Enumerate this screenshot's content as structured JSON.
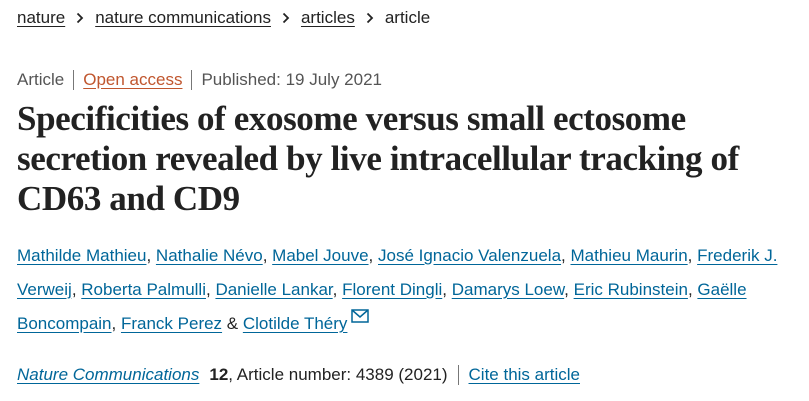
{
  "breadcrumb": [
    "nature",
    "nature communications",
    "articles",
    "article"
  ],
  "meta": {
    "type": "Article",
    "access": "Open access",
    "published": "Published: 19 July 2021"
  },
  "title": "Specificities of exosome versus small ectosome secretion revealed by live intracellular tracking of CD63 and CD9",
  "authors": [
    {
      "name": "Mathilde Mathieu",
      "sep": ", "
    },
    {
      "name": "Nathalie Névo",
      "sep": ", "
    },
    {
      "name": "Mabel Jouve",
      "sep": ", "
    },
    {
      "name": "José Ignacio Valenzuela",
      "sep": ", "
    },
    {
      "name": "Mathieu Maurin",
      "sep": ", "
    },
    {
      "name": "Frederik J. Verweij",
      "sep": ", "
    },
    {
      "name": "Roberta Palmulli",
      "sep": ", "
    },
    {
      "name": "Danielle Lankar",
      "sep": ", "
    },
    {
      "name": "Florent Dingli",
      "sep": ", "
    },
    {
      "name": "Damarys Loew",
      "sep": ", "
    },
    {
      "name": "Eric Rubinstein",
      "sep": ", "
    },
    {
      "name": "Gaëlle Boncompain",
      "sep": ", "
    },
    {
      "name": "Franck Perez",
      "sep": " & "
    },
    {
      "name": "Clotilde Théry"
    }
  ],
  "citation": {
    "journal": "Nature Communications",
    "volume": "12",
    "details": ", Article number: 4389 (2021)",
    "cite": "Cite this article"
  }
}
